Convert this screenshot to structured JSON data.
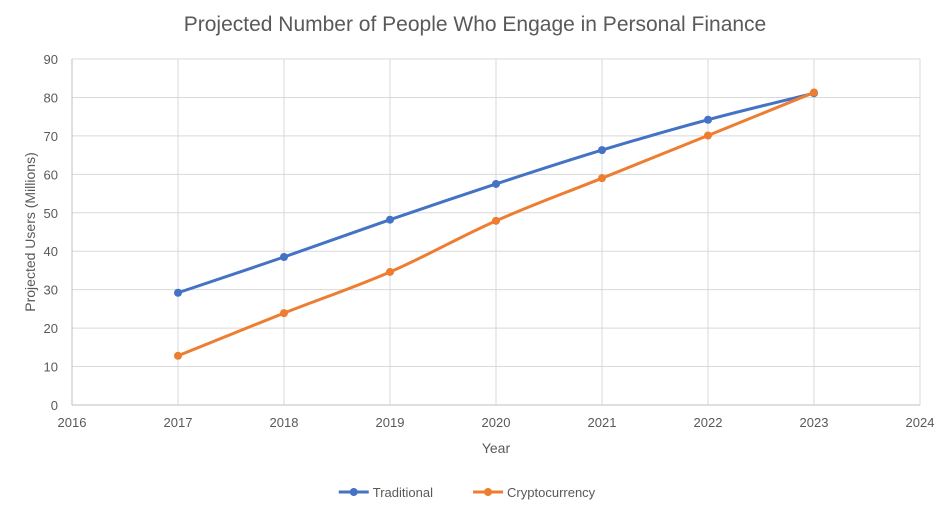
{
  "chart_data": {
    "type": "scatter",
    "title": "Projected Number of People Who Engage in Personal Finance",
    "xlabel": "Year",
    "ylabel": "Projected Users (Millions)",
    "xlim": [
      2016,
      2024
    ],
    "ylim": [
      0,
      90
    ],
    "xticks": [
      2016,
      2017,
      2018,
      2019,
      2020,
      2021,
      2022,
      2023,
      2024
    ],
    "yticks": [
      0,
      10,
      20,
      30,
      40,
      50,
      60,
      70,
      80,
      90
    ],
    "grid": true,
    "legend_position": "bottom",
    "series": [
      {
        "name": "Traditional",
        "color": "#4472c4",
        "x": [
          2017,
          2018,
          2019,
          2020,
          2021,
          2022,
          2023
        ],
        "y": [
          29.2,
          38.5,
          48.2,
          57.5,
          66.3,
          74.2,
          81.1
        ]
      },
      {
        "name": "Cryptocurrency",
        "color": "#ed7d31",
        "x": [
          2017,
          2018,
          2019,
          2020,
          2021,
          2022,
          2023
        ],
        "y": [
          12.8,
          23.9,
          34.6,
          47.9,
          59.0,
          70.1,
          81.3
        ]
      }
    ]
  }
}
